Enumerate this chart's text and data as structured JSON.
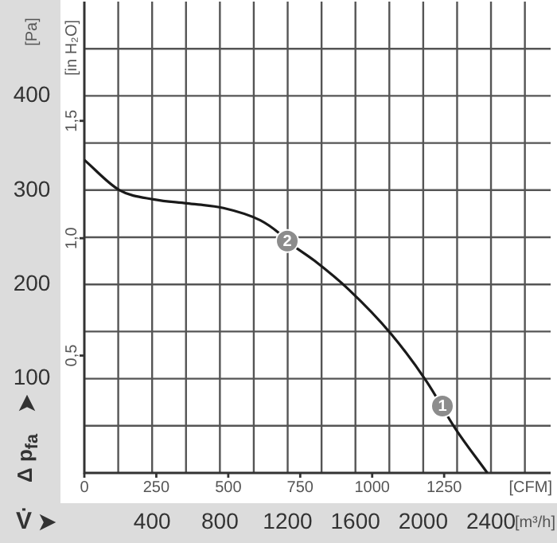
{
  "chart_data": {
    "type": "line",
    "ylabel": "[Pa]",
    "y2label": "[in H₂O]",
    "xlabel": "[CFM]",
    "x2label": "[m³/h]",
    "annotations": [
      "Δ p$_{fa}$",
      "V̇",
      {
        "text": "2",
        "x": 705,
        "y": 246
      },
      {
        "text": "1",
        "x": 1244,
        "y": 71
      }
    ],
    "series": [
      {
        "color": "#1a1a1a",
        "x": [
          0,
          122,
          244,
          356,
          483,
          611,
          678,
          705,
          800,
          917,
          1067,
          1189,
          1289,
          1400
        ],
        "values": [
          332,
          300,
          290,
          286,
          281,
          268,
          254,
          246,
          225,
          195,
          147,
          97,
          47,
          0
        ]
      }
    ],
    "xlim": [
      0,
      1620
    ],
    "xticks": [
      0,
      250,
      500,
      750,
      1000,
      1250
    ],
    "x2lim": [
      0,
      2752
    ],
    "x2ticks": [
      {
        "value": 0,
        "label": null
      },
      {
        "value": 200,
        "label": null
      },
      400,
      {
        "value": 600,
        "label": null
      },
      800,
      {
        "value": 1000,
        "label": null
      },
      1200,
      {
        "value": 1400,
        "label": null
      },
      1600,
      {
        "value": 1800,
        "label": null
      },
      2000,
      {
        "value": 2200,
        "label": null
      },
      2400,
      {
        "value": 2600,
        "label": null
      }
    ],
    "ylim": [
      0,
      500
    ],
    "yticks": [
      {
        "value": 50,
        "label": null
      },
      100,
      {
        "value": 150,
        "label": null
      },
      200,
      {
        "value": 250,
        "label": null
      },
      300,
      {
        "value": 350,
        "label": null
      },
      400,
      {
        "value": 450,
        "label": null
      }
    ],
    "y2lim": [
      0,
      2.008
    ],
    "y2ticks": [
      {
        "value": 0.5,
        "label": "0,5"
      },
      {
        "value": 1.0,
        "label": "1,0"
      },
      {
        "value": 1.5,
        "label": "1,5"
      }
    ],
    "grid": true,
    "marker": "none",
    "line_style": "solid",
    "legend": false
  }
}
